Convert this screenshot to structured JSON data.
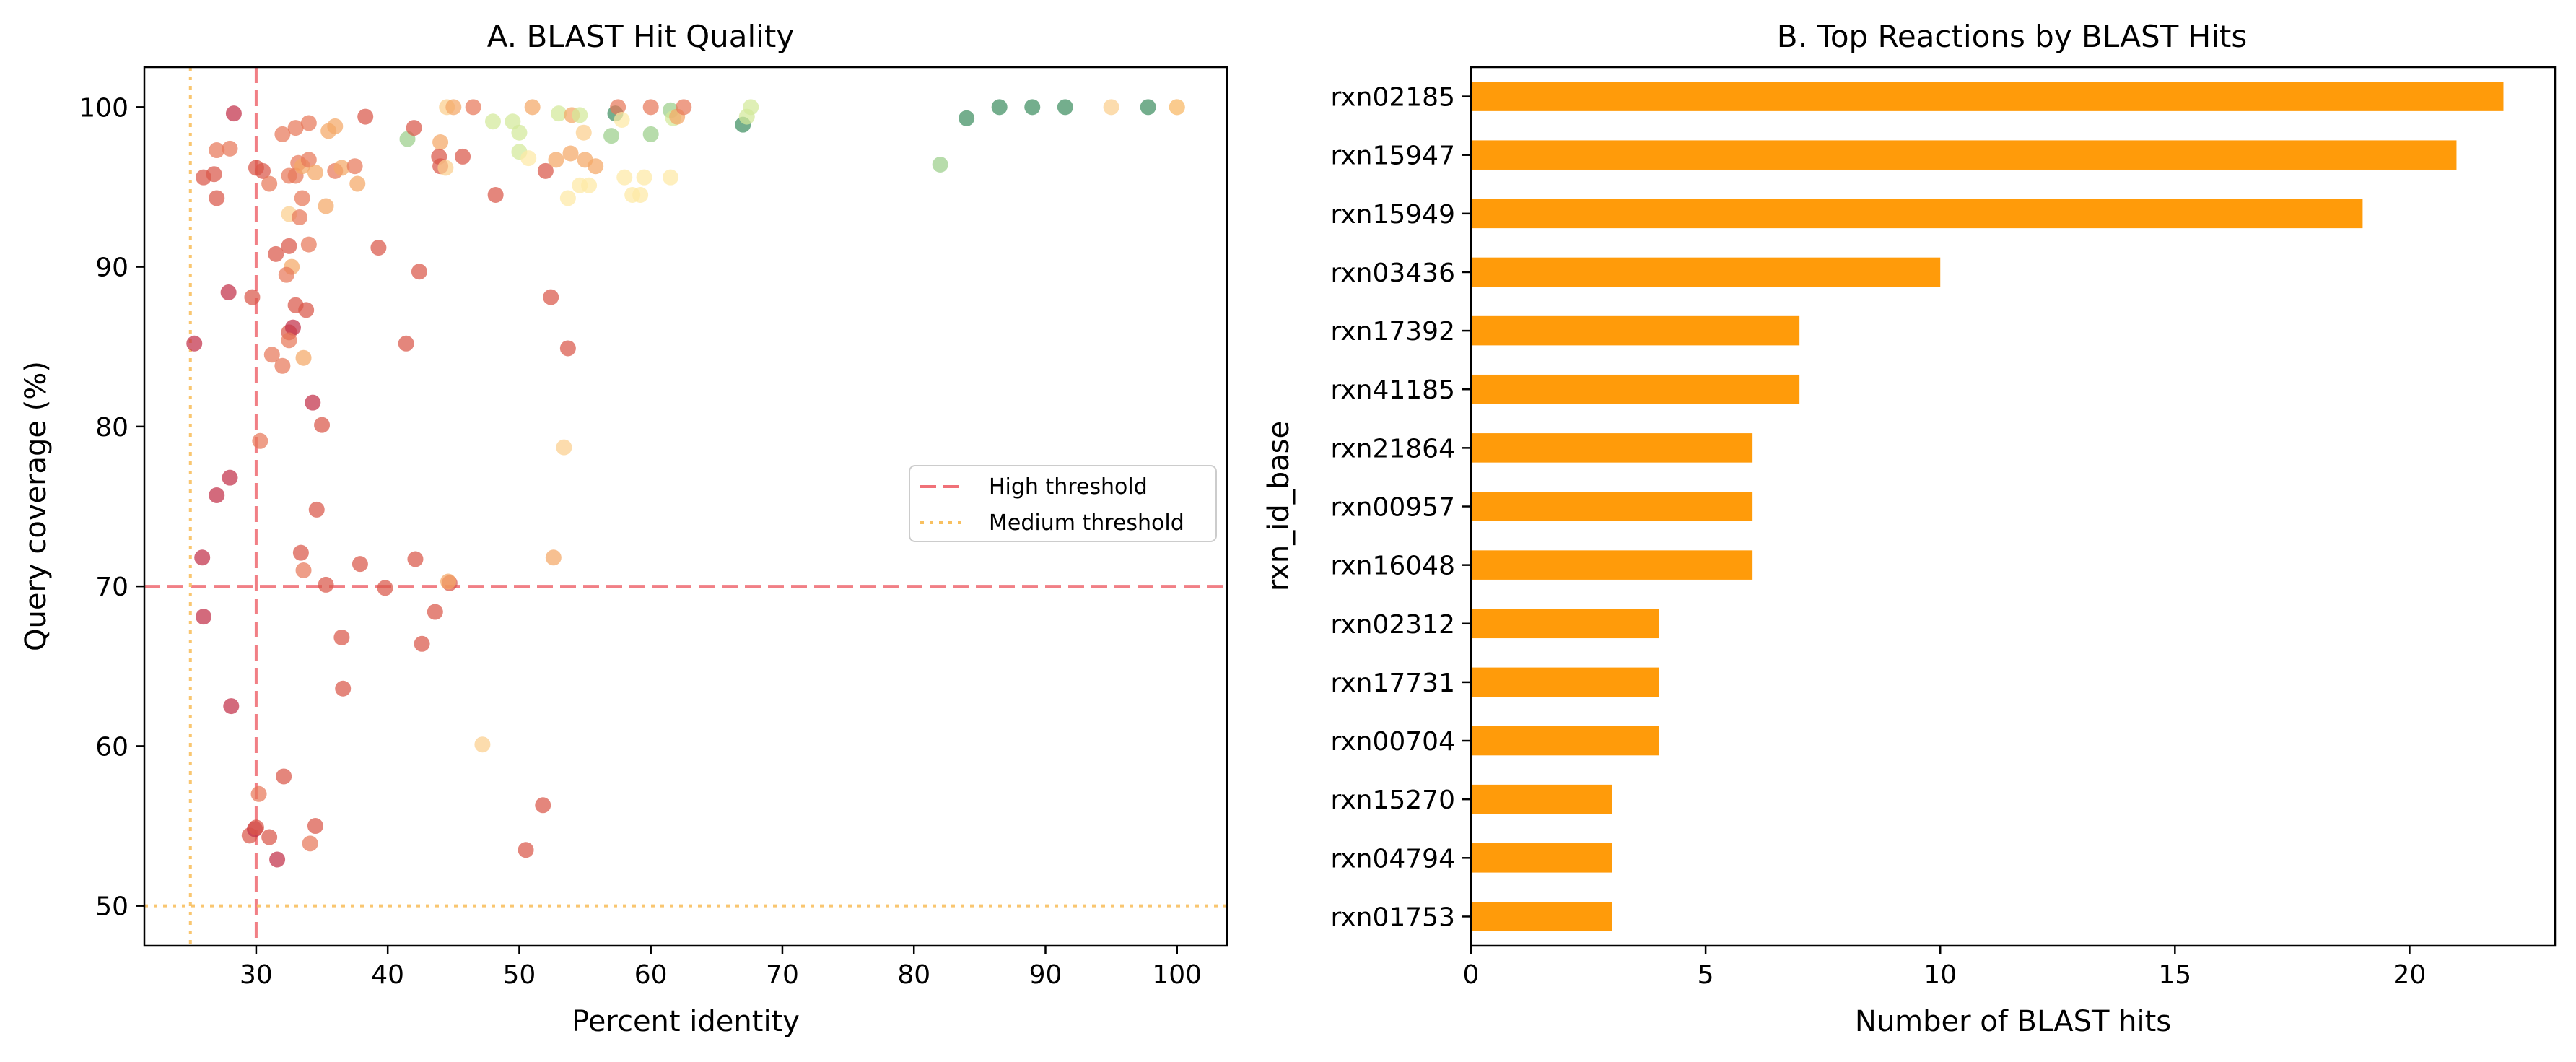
{
  "chart_data": [
    {
      "type": "scatter",
      "title": "A. BLAST Hit Quality",
      "xlabel": "Percent identity",
      "ylabel": "Query coverage (%)",
      "xlim": [
        21.5,
        103.8
      ],
      "ylim": [
        47.5,
        102.5
      ],
      "xticks": [
        30,
        40,
        50,
        60,
        70,
        80,
        90,
        100
      ],
      "yticks": [
        50,
        60,
        70,
        80,
        90,
        100
      ],
      "grid": false,
      "legend_position": "center-right",
      "reference_lines": [
        {
          "name": "High threshold",
          "orientation": "vertical",
          "value": 30,
          "style": "dashed",
          "color": "#f07178"
        },
        {
          "name": "High threshold",
          "orientation": "horizontal",
          "value": 70,
          "style": "dashed",
          "color": "#f07178"
        },
        {
          "name": "Medium threshold",
          "orientation": "vertical",
          "value": 25,
          "style": "dotted",
          "color": "#f8c060"
        },
        {
          "name": "Medium threshold",
          "orientation": "horizontal",
          "value": 50,
          "style": "dotted",
          "color": "#f8c060"
        }
      ],
      "legend": [
        {
          "label": "High threshold",
          "style": "dashed",
          "color": "#f07178"
        },
        {
          "label": "Medium threshold",
          "style": "dotted",
          "color": "#f8c060"
        }
      ],
      "point_colors": {
        "dark_red": "#c2304a",
        "red": "#d9574a",
        "orange_red": "#e8795a",
        "orange": "#f4a767",
        "light_orange": "#fbcf8e",
        "pale_yellow": "#fde9a5",
        "light_green": "#d3e99a",
        "green": "#9bcf8a",
        "dark_green": "#3f8f61"
      },
      "points": [
        {
          "x": 28.3,
          "y": 99.6,
          "c": "dark_red"
        },
        {
          "x": 27.0,
          "y": 97.3,
          "c": "orange_red"
        },
        {
          "x": 28.0,
          "y": 97.4,
          "c": "orange_red"
        },
        {
          "x": 26.0,
          "y": 95.6,
          "c": "red"
        },
        {
          "x": 26.8,
          "y": 95.8,
          "c": "red"
        },
        {
          "x": 27.0,
          "y": 94.3,
          "c": "red"
        },
        {
          "x": 30.0,
          "y": 96.2,
          "c": "red"
        },
        {
          "x": 30.5,
          "y": 96.0,
          "c": "red"
        },
        {
          "x": 31.0,
          "y": 95.2,
          "c": "orange_red"
        },
        {
          "x": 31.5,
          "y": 90.8,
          "c": "red"
        },
        {
          "x": 32.0,
          "y": 98.3,
          "c": "orange_red"
        },
        {
          "x": 32.5,
          "y": 95.7,
          "c": "orange_red"
        },
        {
          "x": 33.0,
          "y": 98.7,
          "c": "orange_red"
        },
        {
          "x": 33.0,
          "y": 95.7,
          "c": "orange_red"
        },
        {
          "x": 33.2,
          "y": 96.5,
          "c": "orange_red"
        },
        {
          "x": 33.5,
          "y": 96.3,
          "c": "orange"
        },
        {
          "x": 34.0,
          "y": 99.0,
          "c": "orange_red"
        },
        {
          "x": 34.0,
          "y": 96.7,
          "c": "orange_red"
        },
        {
          "x": 34.5,
          "y": 95.9,
          "c": "orange"
        },
        {
          "x": 35.5,
          "y": 98.5,
          "c": "orange"
        },
        {
          "x": 36.0,
          "y": 98.8,
          "c": "orange"
        },
        {
          "x": 36.0,
          "y": 96.0,
          "c": "orange_red"
        },
        {
          "x": 36.5,
          "y": 96.2,
          "c": "orange"
        },
        {
          "x": 37.5,
          "y": 96.3,
          "c": "orange_red"
        },
        {
          "x": 38.3,
          "y": 99.4,
          "c": "red"
        },
        {
          "x": 37.7,
          "y": 95.2,
          "c": "orange"
        },
        {
          "x": 35.3,
          "y": 93.8,
          "c": "orange"
        },
        {
          "x": 33.5,
          "y": 94.3,
          "c": "orange_red"
        },
        {
          "x": 32.5,
          "y": 93.3,
          "c": "light_orange"
        },
        {
          "x": 33.3,
          "y": 93.1,
          "c": "orange_red"
        },
        {
          "x": 32.5,
          "y": 91.3,
          "c": "red"
        },
        {
          "x": 34.0,
          "y": 91.4,
          "c": "orange_red"
        },
        {
          "x": 32.7,
          "y": 90.0,
          "c": "orange"
        },
        {
          "x": 32.3,
          "y": 89.5,
          "c": "orange_red"
        },
        {
          "x": 39.3,
          "y": 91.2,
          "c": "red"
        },
        {
          "x": 42.4,
          "y": 89.7,
          "c": "red"
        },
        {
          "x": 27.9,
          "y": 88.4,
          "c": "dark_red"
        },
        {
          "x": 29.7,
          "y": 88.1,
          "c": "red"
        },
        {
          "x": 33.0,
          "y": 87.6,
          "c": "red"
        },
        {
          "x": 33.8,
          "y": 87.3,
          "c": "red"
        },
        {
          "x": 32.5,
          "y": 85.9,
          "c": "red"
        },
        {
          "x": 32.8,
          "y": 86.2,
          "c": "dark_red"
        },
        {
          "x": 32.5,
          "y": 85.4,
          "c": "orange_red"
        },
        {
          "x": 25.3,
          "y": 85.2,
          "c": "dark_red"
        },
        {
          "x": 31.2,
          "y": 84.5,
          "c": "orange_red"
        },
        {
          "x": 32.0,
          "y": 83.8,
          "c": "orange_red"
        },
        {
          "x": 33.6,
          "y": 84.3,
          "c": "orange"
        },
        {
          "x": 41.4,
          "y": 85.2,
          "c": "red"
        },
        {
          "x": 52.4,
          "y": 88.1,
          "c": "red"
        },
        {
          "x": 53.7,
          "y": 84.9,
          "c": "red"
        },
        {
          "x": 34.3,
          "y": 81.5,
          "c": "dark_red"
        },
        {
          "x": 35.0,
          "y": 80.1,
          "c": "red"
        },
        {
          "x": 30.3,
          "y": 79.1,
          "c": "orange_red"
        },
        {
          "x": 28.0,
          "y": 76.8,
          "c": "dark_red"
        },
        {
          "x": 27.0,
          "y": 75.7,
          "c": "dark_red"
        },
        {
          "x": 53.4,
          "y": 78.7,
          "c": "light_orange"
        },
        {
          "x": 34.6,
          "y": 74.8,
          "c": "red"
        },
        {
          "x": 25.9,
          "y": 71.8,
          "c": "dark_red"
        },
        {
          "x": 33.4,
          "y": 72.1,
          "c": "red"
        },
        {
          "x": 33.6,
          "y": 71.0,
          "c": "orange_red"
        },
        {
          "x": 37.9,
          "y": 71.4,
          "c": "red"
        },
        {
          "x": 42.1,
          "y": 71.7,
          "c": "red"
        },
        {
          "x": 52.6,
          "y": 71.8,
          "c": "orange"
        },
        {
          "x": 35.3,
          "y": 70.1,
          "c": "red"
        },
        {
          "x": 39.8,
          "y": 69.9,
          "c": "red"
        },
        {
          "x": 44.7,
          "y": 70.2,
          "c": "red"
        },
        {
          "x": 44.6,
          "y": 70.3,
          "c": "orange"
        },
        {
          "x": 26.0,
          "y": 68.1,
          "c": "dark_red"
        },
        {
          "x": 43.6,
          "y": 68.4,
          "c": "red"
        },
        {
          "x": 36.5,
          "y": 66.8,
          "c": "red"
        },
        {
          "x": 42.6,
          "y": 66.4,
          "c": "red"
        },
        {
          "x": 36.6,
          "y": 63.6,
          "c": "red"
        },
        {
          "x": 28.1,
          "y": 62.5,
          "c": "dark_red"
        },
        {
          "x": 47.2,
          "y": 60.1,
          "c": "light_orange"
        },
        {
          "x": 32.1,
          "y": 58.1,
          "c": "red"
        },
        {
          "x": 30.2,
          "y": 57.0,
          "c": "orange_red"
        },
        {
          "x": 51.8,
          "y": 56.3,
          "c": "red"
        },
        {
          "x": 29.5,
          "y": 54.4,
          "c": "red"
        },
        {
          "x": 29.9,
          "y": 54.8,
          "c": "dark_red"
        },
        {
          "x": 30.0,
          "y": 54.9,
          "c": "red"
        },
        {
          "x": 31.0,
          "y": 54.3,
          "c": "red"
        },
        {
          "x": 34.5,
          "y": 55.0,
          "c": "red"
        },
        {
          "x": 34.1,
          "y": 53.9,
          "c": "orange_red"
        },
        {
          "x": 31.6,
          "y": 52.9,
          "c": "dark_red"
        },
        {
          "x": 50.5,
          "y": 53.5,
          "c": "red"
        },
        {
          "x": 41.5,
          "y": 98.0,
          "c": "green"
        },
        {
          "x": 42.0,
          "y": 98.7,
          "c": "red"
        },
        {
          "x": 44.0,
          "y": 97.8,
          "c": "orange"
        },
        {
          "x": 43.9,
          "y": 96.9,
          "c": "red"
        },
        {
          "x": 44.0,
          "y": 96.3,
          "c": "red"
        },
        {
          "x": 44.4,
          "y": 96.2,
          "c": "light_orange"
        },
        {
          "x": 45.7,
          "y": 96.9,
          "c": "red"
        },
        {
          "x": 44.5,
          "y": 100.0,
          "c": "light_orange"
        },
        {
          "x": 45.0,
          "y": 100.0,
          "c": "orange"
        },
        {
          "x": 46.5,
          "y": 100.0,
          "c": "orange_red"
        },
        {
          "x": 48.2,
          "y": 94.5,
          "c": "red"
        },
        {
          "x": 48.0,
          "y": 99.1,
          "c": "light_green"
        },
        {
          "x": 49.5,
          "y": 99.1,
          "c": "light_green"
        },
        {
          "x": 50.0,
          "y": 98.4,
          "c": "light_green"
        },
        {
          "x": 50.0,
          "y": 97.2,
          "c": "light_green"
        },
        {
          "x": 50.7,
          "y": 96.8,
          "c": "pale_yellow"
        },
        {
          "x": 51.0,
          "y": 100.0,
          "c": "orange"
        },
        {
          "x": 52.0,
          "y": 96.0,
          "c": "red"
        },
        {
          "x": 52.8,
          "y": 96.7,
          "c": "orange"
        },
        {
          "x": 53.0,
          "y": 99.6,
          "c": "light_green"
        },
        {
          "x": 53.9,
          "y": 97.1,
          "c": "orange"
        },
        {
          "x": 54.0,
          "y": 99.5,
          "c": "orange"
        },
        {
          "x": 53.7,
          "y": 94.3,
          "c": "pale_yellow"
        },
        {
          "x": 54.6,
          "y": 99.5,
          "c": "light_green"
        },
        {
          "x": 54.9,
          "y": 98.4,
          "c": "light_orange"
        },
        {
          "x": 54.6,
          "y": 95.1,
          "c": "pale_yellow"
        },
        {
          "x": 55.0,
          "y": 96.7,
          "c": "orange"
        },
        {
          "x": 55.3,
          "y": 95.1,
          "c": "pale_yellow"
        },
        {
          "x": 55.8,
          "y": 96.3,
          "c": "orange"
        },
        {
          "x": 57.0,
          "y": 98.2,
          "c": "green"
        },
        {
          "x": 57.3,
          "y": 99.6,
          "c": "dark_green"
        },
        {
          "x": 57.5,
          "y": 100.0,
          "c": "orange_red"
        },
        {
          "x": 57.8,
          "y": 99.2,
          "c": "pale_yellow"
        },
        {
          "x": 58.0,
          "y": 95.6,
          "c": "pale_yellow"
        },
        {
          "x": 58.6,
          "y": 94.5,
          "c": "pale_yellow"
        },
        {
          "x": 59.2,
          "y": 94.5,
          "c": "pale_yellow"
        },
        {
          "x": 59.5,
          "y": 95.6,
          "c": "pale_yellow"
        },
        {
          "x": 60.0,
          "y": 98.3,
          "c": "green"
        },
        {
          "x": 60.0,
          "y": 100.0,
          "c": "orange_red"
        },
        {
          "x": 61.5,
          "y": 99.8,
          "c": "green"
        },
        {
          "x": 61.7,
          "y": 99.3,
          "c": "light_green"
        },
        {
          "x": 62.0,
          "y": 99.4,
          "c": "orange"
        },
        {
          "x": 61.5,
          "y": 95.6,
          "c": "pale_yellow"
        },
        {
          "x": 62.5,
          "y": 100.0,
          "c": "orange_red"
        },
        {
          "x": 67.0,
          "y": 98.9,
          "c": "dark_green"
        },
        {
          "x": 67.3,
          "y": 99.4,
          "c": "light_green"
        },
        {
          "x": 67.6,
          "y": 100.0,
          "c": "light_green"
        },
        {
          "x": 82.0,
          "y": 96.4,
          "c": "green"
        },
        {
          "x": 84.0,
          "y": 99.3,
          "c": "dark_green"
        },
        {
          "x": 86.5,
          "y": 100.0,
          "c": "dark_green"
        },
        {
          "x": 89.0,
          "y": 100.0,
          "c": "dark_green"
        },
        {
          "x": 91.5,
          "y": 100.0,
          "c": "dark_green"
        },
        {
          "x": 95.0,
          "y": 100.0,
          "c": "light_orange"
        },
        {
          "x": 97.8,
          "y": 100.0,
          "c": "dark_green"
        },
        {
          "x": 100.0,
          "y": 100.0,
          "c": "orange"
        },
        {
          "x": 100.0,
          "y": 100.0,
          "c": "light_orange"
        }
      ]
    },
    {
      "type": "bar",
      "orientation": "horizontal",
      "title": "B. Top Reactions by BLAST Hits",
      "xlabel": "Number of BLAST hits",
      "ylabel": "rxn_id_base",
      "xlim": [
        0,
        23.1
      ],
      "xticks": [
        0,
        5,
        10,
        15,
        20
      ],
      "grid": false,
      "bar_color": "#ff9b0a",
      "categories": [
        "rxn02185",
        "rxn15947",
        "rxn15949",
        "rxn03436",
        "rxn17392",
        "rxn41185",
        "rxn21864",
        "rxn00957",
        "rxn16048",
        "rxn02312",
        "rxn17731",
        "rxn00704",
        "rxn15270",
        "rxn04794",
        "rxn01753"
      ],
      "values": [
        22,
        21,
        19,
        10,
        7,
        7,
        6,
        6,
        6,
        4,
        4,
        4,
        3,
        3,
        3
      ]
    }
  ]
}
